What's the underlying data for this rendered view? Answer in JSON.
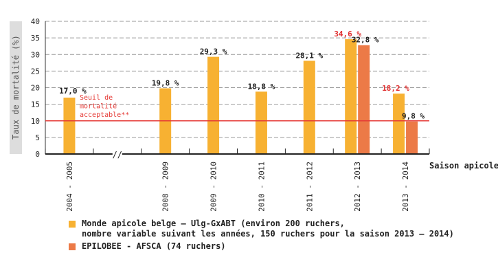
{
  "chart_data": {
    "type": "bar",
    "ylabel": "Taux de mortalité (%)",
    "xlabel": "Saison apicole",
    "ylim": [
      0,
      40
    ],
    "yticks": [
      0,
      5,
      10,
      15,
      20,
      25,
      30,
      35,
      40
    ],
    "grid": "horizontal dashed",
    "categories": [
      "2004 - 2005",
      "",
      "2008 - 2009",
      "2009 - 2010",
      "2010 - 2011",
      "2011 - 2012",
      "2012 - 2013",
      "2013 - 2014"
    ],
    "axis_break_marker": "//",
    "series": [
      {
        "name": "Monde apicole belge – Ulg-GxABT (environ 200 ruchers,\nnombre variable suivant les années, 150 ruchers pour la saison 2013 – 2014)",
        "color": "#f7b132",
        "values": [
          17.0,
          null,
          19.8,
          29.3,
          18.8,
          28.1,
          34.6,
          18.2
        ],
        "labels": [
          "17,0 %",
          "",
          "19,8 %",
          "29,3 %",
          "18,8 %",
          "28,1 %",
          "34,6 %",
          "18,2 %"
        ]
      },
      {
        "name": "EPILOBEE - AFSCA (74 ruchers)",
        "color": "#ec7a47",
        "values": [
          null,
          null,
          null,
          null,
          null,
          null,
          32.8,
          9.8
        ],
        "labels": [
          "",
          "",
          "",
          "",
          "",
          "",
          "32,8 %",
          "9,8 %"
        ]
      }
    ],
    "highlight_label_color": "#e03030",
    "threshold": {
      "value": 10,
      "color": "#e53935",
      "label": "Seuil de\nmortalité\nacceptable**"
    }
  }
}
